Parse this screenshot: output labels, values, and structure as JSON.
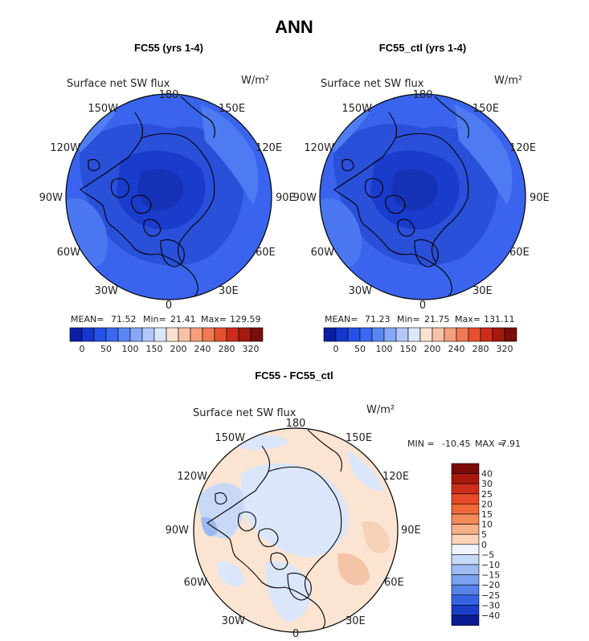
{
  "chart_data": {
    "type": "polar-contour-map",
    "title": "ANN",
    "panels": [
      {
        "id": "fc55",
        "subtitle": "FC55 (yrs 1-4)",
        "field_label": "Surface net SW flux",
        "units": "W/m²",
        "stats": {
          "mean_label": "MEAN=",
          "mean": "71.52",
          "min_label": "Min=",
          "min": "21.41",
          "max_label": "Max=",
          "max": "129.59"
        },
        "colorbar_ticks": [
          "0",
          "50",
          "100",
          "150",
          "200",
          "240",
          "280",
          "320"
        ],
        "colorbar_colors": [
          "#0b1ea3",
          "#1438cf",
          "#2452e6",
          "#3b6af0",
          "#5a86f4",
          "#86a8f7",
          "#b3c8fa",
          "#dce7fd",
          "#fbe2d0",
          "#f7c2a6",
          "#f59f7d",
          "#f07a55",
          "#e6502f",
          "#cc2d1a",
          "#a51a10",
          "#7a0d08"
        ],
        "longitude_labels": [
          "180",
          "150E",
          "120E",
          "90E",
          "60E",
          "30E",
          "0",
          "30W",
          "60W",
          "90W",
          "120W",
          "150W"
        ]
      },
      {
        "id": "fc55_ctl",
        "subtitle": "FC55_ctl (yrs 1-4)",
        "field_label": "Surface net SW flux",
        "units": "W/m²",
        "stats": {
          "mean_label": "MEAN=",
          "mean": "71.23",
          "min_label": "Min=",
          "min": "21.75",
          "max_label": "Max=",
          "max": "131.11"
        },
        "colorbar_ticks": [
          "0",
          "50",
          "100",
          "150",
          "200",
          "240",
          "280",
          "320"
        ],
        "colorbar_colors": [
          "#0b1ea3",
          "#1438cf",
          "#2452e6",
          "#3b6af0",
          "#5a86f4",
          "#86a8f7",
          "#b3c8fa",
          "#dce7fd",
          "#fbe2d0",
          "#f7c2a6",
          "#f59f7d",
          "#f07a55",
          "#e6502f",
          "#cc2d1a",
          "#a51a10",
          "#7a0d08"
        ],
        "longitude_labels": [
          "180",
          "150E",
          "120E",
          "90E",
          "60E",
          "30E",
          "0",
          "30W",
          "60W",
          "90W",
          "120W",
          "150W"
        ]
      },
      {
        "id": "diff",
        "subtitle": "FC55 - FC55_ctl",
        "field_label": "Surface net SW flux",
        "units": "W/m²",
        "stats": {
          "min_label": "MIN =",
          "min": "-10.45",
          "max_label": "MAX =",
          "max": "7.91"
        },
        "colorbar_levels": [
          "40",
          "30",
          "25",
          "20",
          "15",
          "10",
          "5",
          "0",
          "−5",
          "−10",
          "−15",
          "−20",
          "−25",
          "−30",
          "−40"
        ],
        "colorbar_colors": [
          "#7a0b06",
          "#a8190e",
          "#cc2e1a",
          "#e64a26",
          "#f26838",
          "#f58a5b",
          "#f8ae88",
          "#fbd3b8",
          "#eef3fd",
          "#c6d9f8",
          "#9dbdf2",
          "#7ba2ef",
          "#5583ea",
          "#3563e2",
          "#1c3fc9",
          "#0a1b94"
        ],
        "longitude_labels": [
          "180",
          "150E",
          "120E",
          "90E",
          "60E",
          "30E",
          "0",
          "30W",
          "60W",
          "90W",
          "120W",
          "150W"
        ]
      }
    ]
  }
}
